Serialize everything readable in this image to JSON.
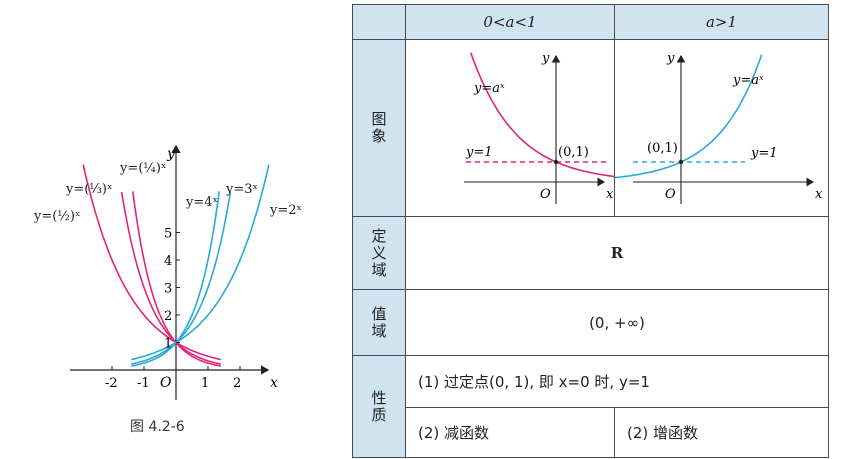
{
  "figure_left": {
    "caption": "图 4.2-6",
    "axis_x": "x",
    "axis_y": "y",
    "origin": "O",
    "x_ticks": [
      "-2",
      "-1",
      "1",
      "2"
    ],
    "y_ticks": [
      "1",
      "2",
      "3",
      "4",
      "5"
    ],
    "labels": {
      "half": "y=(½)ˣ",
      "third": "y=(⅓)ˣ",
      "quarter": "y=(¼)ˣ",
      "four": "y=4ˣ",
      "three": "y=3ˣ",
      "two": "y=2ˣ"
    },
    "colors": {
      "decreasing": "#e0257a",
      "increasing": "#2aa8dc",
      "axis": "#222222"
    }
  },
  "table": {
    "header_case1": "0<a<1",
    "header_case2": "a>1",
    "row_graph": "图象",
    "row_domain": "定义域",
    "row_range": "值域",
    "row_property": "性质",
    "domain_value": "R",
    "range_value": "(0, +∞)",
    "property_1": "(1) 过定点(0, 1), 即 x=0 时, y=1",
    "property_2a": "(2) 减函数",
    "property_2b": "(2) 增函数",
    "graph1": {
      "curve_label": "y=aˣ",
      "line_label": "y=1",
      "point_label": "(0,1)",
      "axis_x": "x",
      "axis_y": "y",
      "origin": "O"
    },
    "graph2": {
      "curve_label": "y=aˣ",
      "line_label": "y=1",
      "point_label": "(0,1)",
      "axis_x": "x",
      "axis_y": "y",
      "origin": "O"
    },
    "header_bg": "#cfe3f0"
  }
}
